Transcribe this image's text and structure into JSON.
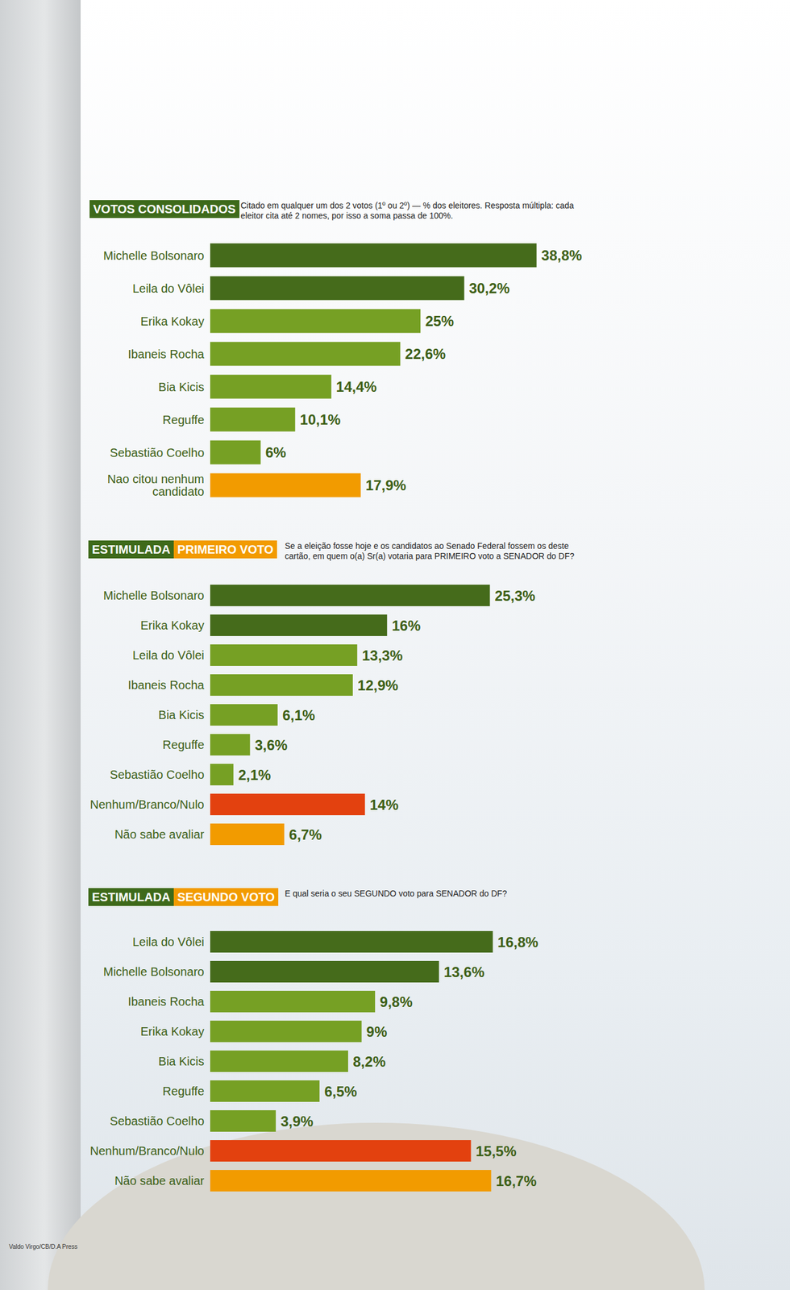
{
  "chart_data": [
    {
      "type": "bar",
      "orientation": "horizontal",
      "title": [
        "VOTOS CONSOLIDADOS"
      ],
      "subtitle": "Citado em qualquer um dos 2 votos (1º ou 2º) — % dos eleitores. Resposta múltipla: cada eleitor cita até 2 nomes, por isso a soma passa de 100%.",
      "categories": [
        "Michelle Bolsonaro",
        "Leila do Vôlei",
        "Erika Kokay",
        "Ibaneis Rocha",
        "Bia Kicis",
        "Reguffe",
        "Sebastião Coelho",
        "Nao citou nenhum candidato"
      ],
      "values": [
        38.8,
        30.2,
        25,
        22.6,
        14.4,
        10.1,
        6,
        17.9
      ],
      "value_labels": [
        "38,8%",
        "30,2%",
        "25%",
        "22,6%",
        "14,4%",
        "10,1%",
        "6%",
        "17,9%"
      ],
      "colors": [
        "#456b1b",
        "#456b1b",
        "#76a024",
        "#76a024",
        "#76a024",
        "#76a024",
        "#76a024",
        "#f29b00"
      ],
      "xlim": [
        0,
        46
      ],
      "data_labels": true,
      "tick_labels": "y",
      "grid": false
    },
    {
      "type": "bar",
      "orientation": "horizontal",
      "title": [
        "ESTIMULADA",
        "PRIMEIRO VOTO"
      ],
      "subtitle": "Se a eleição fosse hoje e os candidatos ao Senado Federal fossem os deste cartão, em quem o(a) Sr(a) votaria para PRIMEIRO voto a SENADOR do DF?",
      "categories": [
        "Michelle Bolsonaro",
        "Erika Kokay",
        "Leila do Vôlei",
        "Ibaneis Rocha",
        "Bia Kicis",
        "Reguffe",
        "Sebastião Coelho",
        "Nenhum/Branco/Nulo",
        "Não sabe avaliar"
      ],
      "values": [
        25.3,
        16,
        13.3,
        12.9,
        6.1,
        3.6,
        2.1,
        14,
        6.7
      ],
      "value_labels": [
        "25,3%",
        "16%",
        "13,3%",
        "12,9%",
        "6,1%",
        "3,6%",
        "2,1%",
        "14%",
        "6,7%"
      ],
      "colors": [
        "#456b1b",
        "#456b1b",
        "#76a024",
        "#76a024",
        "#76a024",
        "#76a024",
        "#76a024",
        "#e3410f",
        "#f29b00"
      ],
      "xlim": [
        0,
        35
      ],
      "data_labels": true,
      "tick_labels": "y",
      "grid": false
    },
    {
      "type": "bar",
      "orientation": "horizontal",
      "title": [
        "ESTIMULADA",
        "SEGUNDO VOTO"
      ],
      "subtitle": "E qual seria o seu SEGUNDO voto para SENADOR do DF?",
      "categories": [
        "Leila do Vôlei",
        "Michelle Bolsonaro",
        "Ibaneis Rocha",
        "Erika Kokay",
        "Bia Kicis",
        "Reguffe",
        "Sebastião Coelho",
        "Nenhum/Branco/Nulo",
        "Não sabe avaliar"
      ],
      "values": [
        16.8,
        13.6,
        9.8,
        9,
        8.2,
        6.5,
        3.9,
        15.5,
        16.7
      ],
      "value_labels": [
        "16,8%",
        "13,6%",
        "9,8%",
        "9%",
        "8,2%",
        "6,5%",
        "3,9%",
        "15,5%",
        "16,7%"
      ],
      "colors": [
        "#456b1b",
        "#456b1b",
        "#76a024",
        "#76a024",
        "#76a024",
        "#76a024",
        "#76a024",
        "#e3410f",
        "#f29b00"
      ],
      "xlim": [
        0,
        23
      ],
      "data_labels": true,
      "tick_labels": "y",
      "grid": false
    }
  ],
  "credit": "Valdo Virgo/CB/D.A Press"
}
